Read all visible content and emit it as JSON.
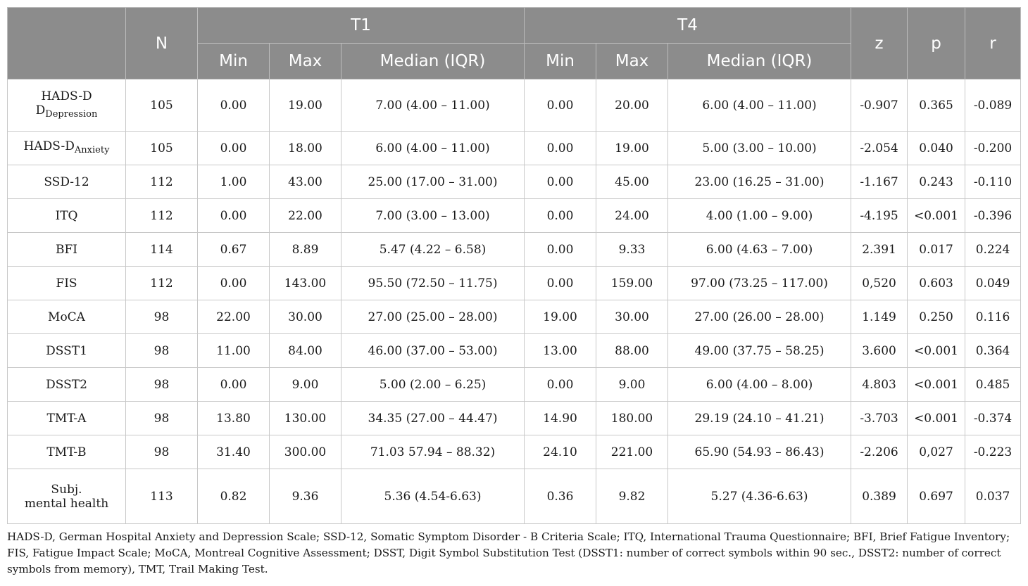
{
  "header": {
    "blank": "",
    "n": "N",
    "t1": "T1",
    "t4": "T4",
    "z": "z",
    "p": "p",
    "r": "r",
    "min": "Min",
    "max": "Max",
    "median_iqr": "Median (IQR)"
  },
  "rows": [
    {
      "label_main": "HADS-D",
      "label_sub": "Depression",
      "n": "105",
      "t1_min": "0.00",
      "t1_max": "19.00",
      "t1_median": "7.00 (4.00 – 11.00)",
      "t4_min": "0.00",
      "t4_max": "20.00",
      "t4_median": "6.00 (4.00 – 11.00)",
      "z": "-0.907",
      "p": "0.365",
      "r": "-0.089"
    },
    {
      "label_main": "HADS-D",
      "label_sub": "Anxiety",
      "n": "105",
      "t1_min": "0.00",
      "t1_max": "18.00",
      "t1_median": "6.00 (4.00 – 11.00)",
      "t4_min": "0.00",
      "t4_max": "19.00",
      "t4_median": "5.00 (3.00 – 10.00)",
      "z": "-2.054",
      "p": "0.040",
      "r": "-0.200"
    },
    {
      "label": "SSD-12",
      "n": "112",
      "t1_min": "1.00",
      "t1_max": "43.00",
      "t1_median": "25.00 (17.00 – 31.00)",
      "t4_min": "0.00",
      "t4_max": "45.00",
      "t4_median": "23.00 (16.25 – 31.00)",
      "z": "-1.167",
      "p": "0.243",
      "r": "-0.110"
    },
    {
      "label": "ITQ",
      "n": "112",
      "t1_min": "0.00",
      "t1_max": "22.00",
      "t1_median": "7.00 (3.00 – 13.00)",
      "t4_min": "0.00",
      "t4_max": "24.00",
      "t4_median": "4.00 (1.00 – 9.00)",
      "z": "-4.195",
      "p": "<0.001",
      "r": "-0.396"
    },
    {
      "label": "BFI",
      "n": "114",
      "t1_min": "0.67",
      "t1_max": "8.89",
      "t1_median": "5.47 (4.22 – 6.58)",
      "t4_min": "0.00",
      "t4_max": "9.33",
      "t4_median": "6.00 (4.63 – 7.00)",
      "z": "2.391",
      "p": "0.017",
      "r": "0.224"
    },
    {
      "label": "FIS",
      "n": "112",
      "t1_min": "0.00",
      "t1_max": "143.00",
      "t1_median": "95.50 (72.50 – 11.75)",
      "t4_min": "0.00",
      "t4_max": "159.00",
      "t4_median": "97.00 (73.25 – 117.00)",
      "z": "0,520",
      "p": "0.603",
      "r": "0.049"
    },
    {
      "label": "MoCA",
      "n": "98",
      "t1_min": "22.00",
      "t1_max": "30.00",
      "t1_median": "27.00 (25.00 – 28.00)",
      "t4_min": "19.00",
      "t4_max": "30.00",
      "t4_median": "27.00 (26.00 – 28.00)",
      "z": "1.149",
      "p": "0.250",
      "r": "0.116"
    },
    {
      "label": "DSST1",
      "n": "98",
      "t1_min": "11.00",
      "t1_max": "84.00",
      "t1_median": "46.00 (37.00 – 53.00)",
      "t4_min": "13.00",
      "t4_max": "88.00",
      "t4_median": "49.00 (37.75 – 58.25)",
      "z": "3.600",
      "p": "<0.001",
      "r": "0.364"
    },
    {
      "label": "DSST2",
      "n": "98",
      "t1_min": "0.00",
      "t1_max": "9.00",
      "t1_median": "5.00 (2.00 – 6.25)",
      "t4_min": "0.00",
      "t4_max": "9.00",
      "t4_median": "6.00 (4.00 – 8.00)",
      "z": "4.803",
      "p": "<0.001",
      "r": "0.485"
    },
    {
      "label": "TMT-A",
      "n": "98",
      "t1_min": "13.80",
      "t1_max": "130.00",
      "t1_median": "34.35 (27.00 – 44.47)",
      "t4_min": "14.90",
      "t4_max": "180.00",
      "t4_median": "29.19 (24.10 – 41.21)",
      "z": "-3.703",
      "p": "<0.001",
      "r": "-0.374"
    },
    {
      "label": "TMT-B",
      "n": "98",
      "t1_min": "31.40",
      "t1_max": "300.00",
      "t1_median": "71.03 57.94 – 88.32)",
      "t4_min": "24.10",
      "t4_max": "221.00",
      "t4_median": "65.90 (54.93 – 86.43)",
      "z": "-2.206",
      "p": "0,027",
      "r": "-0.223"
    },
    {
      "label_line1": "Subj.",
      "label_line2": "mental health",
      "n": "113",
      "t1_min": "0.82",
      "t1_max": "9.36",
      "t1_median": "5.36 (4.54-6.63)",
      "t4_min": "0.36",
      "t4_max": "9.82",
      "t4_median": "5.27 (4.36-6.63)",
      "z": "0.389",
      "p": "0.697",
      "r": "0.037"
    }
  ],
  "footnote": "HADS-D, German Hospital Anxiety and Depression Scale; SSD-12, Somatic Symptom Disorder - B Criteria Scale; ITQ, International Trauma Questionnaire; BFI, Brief Fatigue Inventory; FIS, Fatigue Impact Scale; MoCA, Montreal Cognitive Assessment; DSST, Digit Symbol Substitution Test (DSST1: number of correct symbols within 90 sec., DSST2: number of correct symbols from memory), TMT, Trail Making Test."
}
